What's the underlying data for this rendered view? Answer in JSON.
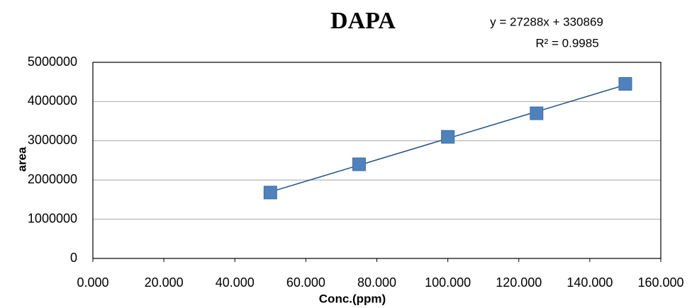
{
  "chart_data": {
    "type": "scatter",
    "title": "DAPA",
    "x_label": "Conc.(ppm)",
    "y_label": "area",
    "annotations": [
      "y = 27288x + 330869",
      "R² = 0.9985"
    ],
    "series": [
      {
        "name": "area",
        "color": "#4f81bd",
        "x": [
          50,
          75,
          100,
          125,
          150
        ],
        "values": [
          1680000,
          2400000,
          3100000,
          3700000,
          4450000
        ]
      }
    ],
    "trendline": {
      "color": "#1f5086",
      "x": [
        50,
        150
      ],
      "values": [
        1695269,
        4424069
      ]
    },
    "xlim": [
      0,
      160
    ],
    "xticks": [
      {
        "value": 0,
        "label": "0.000"
      },
      {
        "value": 20,
        "label": "20.000"
      },
      {
        "value": 40,
        "label": "40.000"
      },
      {
        "value": 60,
        "label": "60.000"
      },
      {
        "value": 80,
        "label": "80.000"
      },
      {
        "value": 100,
        "label": "100.000"
      },
      {
        "value": 120,
        "label": "120.000"
      },
      {
        "value": 140,
        "label": "140.000"
      },
      {
        "value": 160,
        "label": "160.000"
      }
    ],
    "ylim": [
      0,
      5000000
    ],
    "yticks": [
      0,
      1000000,
      2000000,
      3000000,
      4000000,
      5000000
    ],
    "grid": true
  }
}
